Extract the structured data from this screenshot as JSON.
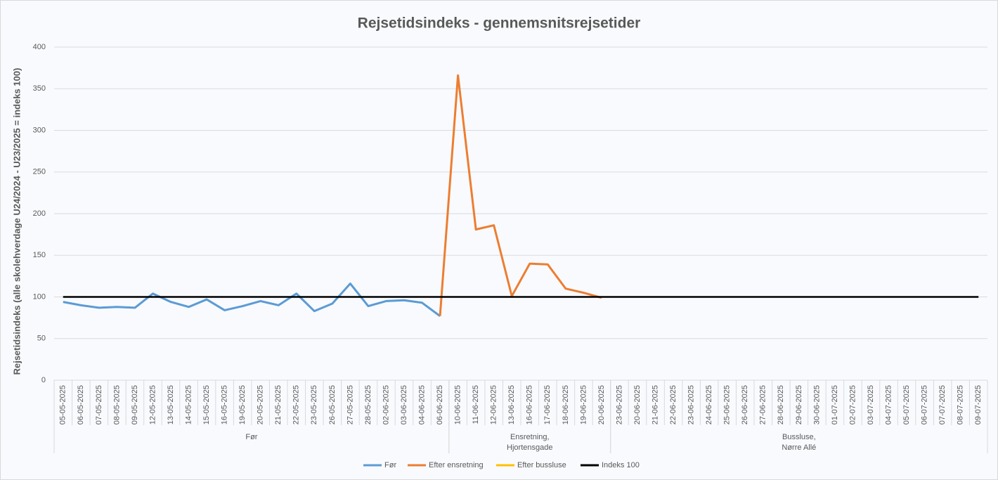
{
  "chart_data": {
    "type": "line",
    "title": "Rejsetidsindeks - gennemsnitsrejsetider",
    "y_label": "Rejsetidsindeks (alle skolehverdage U24/2024 - U23/2025 = indeks 100)",
    "categories": [
      "05-05-2025",
      "06-05-2025",
      "07-05-2025",
      "08-05-2025",
      "09-05-2025",
      "12-05-2025",
      "13-05-2025",
      "14-05-2025",
      "15-05-2025",
      "16-05-2025",
      "19-05-2025",
      "20-05-2025",
      "21-05-2025",
      "22-05-2025",
      "23-05-2025",
      "26-05-2025",
      "27-05-2025",
      "28-05-2025",
      "02-06-2025",
      "03-06-2025",
      "04-06-2025",
      "06-06-2025",
      "10-06-2025",
      "11-06-2025",
      "12-06-2025",
      "13-06-2025",
      "16-06-2025",
      "17-06-2025",
      "18-06-2025",
      "19-06-2025",
      "20-06-2025",
      "23-06-2025",
      "20-06-2025",
      "21-06-2025",
      "22-06-2025",
      "23-06-2025",
      "24-06-2025",
      "25-06-2025",
      "26-06-2025",
      "27-06-2025",
      "28-06-2025",
      "29-06-2025",
      "30-06-2025",
      "01-07-2025",
      "02-07-2025",
      "03-07-2025",
      "04-07-2025",
      "05-07-2025",
      "06-07-2025",
      "07-07-2025",
      "08-07-2025",
      "09-07-2025"
    ],
    "groups": [
      {
        "label": [
          "Før"
        ],
        "size": 22
      },
      {
        "label": [
          "Ensretning,",
          "Hjortensgade"
        ],
        "size": 9
      },
      {
        "label": [
          "Bussluse,",
          "Nørre Allé"
        ],
        "size": 21
      }
    ],
    "series": [
      {
        "name": "Før",
        "color": "#5b9bd5",
        "values": [
          94,
          90,
          87,
          88,
          87,
          104,
          94,
          88,
          97,
          84,
          89,
          95,
          90,
          104,
          83,
          92,
          116,
          89,
          95,
          96,
          93,
          77,
          null,
          null,
          null,
          null,
          null,
          null,
          null,
          null,
          null,
          null,
          null,
          null,
          null,
          null,
          null,
          null,
          null,
          null,
          null,
          null,
          null,
          null,
          null,
          null,
          null,
          null,
          null,
          null,
          null,
          null
        ]
      },
      {
        "name": "Efter ensretning",
        "color": "#ed7d31",
        "values": [
          null,
          null,
          null,
          null,
          null,
          null,
          null,
          null,
          null,
          null,
          null,
          null,
          null,
          null,
          null,
          null,
          null,
          null,
          null,
          null,
          null,
          77,
          366,
          181,
          186,
          101,
          140,
          139,
          110,
          105,
          99,
          null,
          null,
          null,
          null,
          null,
          null,
          null,
          null,
          null,
          null,
          null,
          null,
          null,
          null,
          null,
          null,
          null,
          null,
          null,
          null,
          null
        ]
      },
      {
        "name": "Efter bussluse",
        "color": "#ffc000",
        "values": [
          null,
          null,
          null,
          null,
          null,
          null,
          null,
          null,
          null,
          null,
          null,
          null,
          null,
          null,
          null,
          null,
          null,
          null,
          null,
          null,
          null,
          null,
          null,
          null,
          null,
          null,
          null,
          null,
          null,
          null,
          null,
          null,
          null,
          null,
          null,
          null,
          null,
          null,
          null,
          null,
          null,
          null,
          null,
          null,
          null,
          null,
          null,
          null,
          null,
          null,
          null,
          null
        ]
      },
      {
        "name": "Indeks 100",
        "color": "#000000",
        "values": [
          100,
          100,
          100,
          100,
          100,
          100,
          100,
          100,
          100,
          100,
          100,
          100,
          100,
          100,
          100,
          100,
          100,
          100,
          100,
          100,
          100,
          100,
          100,
          100,
          100,
          100,
          100,
          100,
          100,
          100,
          100,
          100,
          100,
          100,
          100,
          100,
          100,
          100,
          100,
          100,
          100,
          100,
          100,
          100,
          100,
          100,
          100,
          100,
          100,
          100,
          100,
          100
        ]
      }
    ],
    "ylim": [
      0,
      400
    ],
    "yticks": [
      0,
      50,
      100,
      150,
      200,
      250,
      300,
      350,
      400
    ],
    "grid": true,
    "legend": "bottom"
  }
}
